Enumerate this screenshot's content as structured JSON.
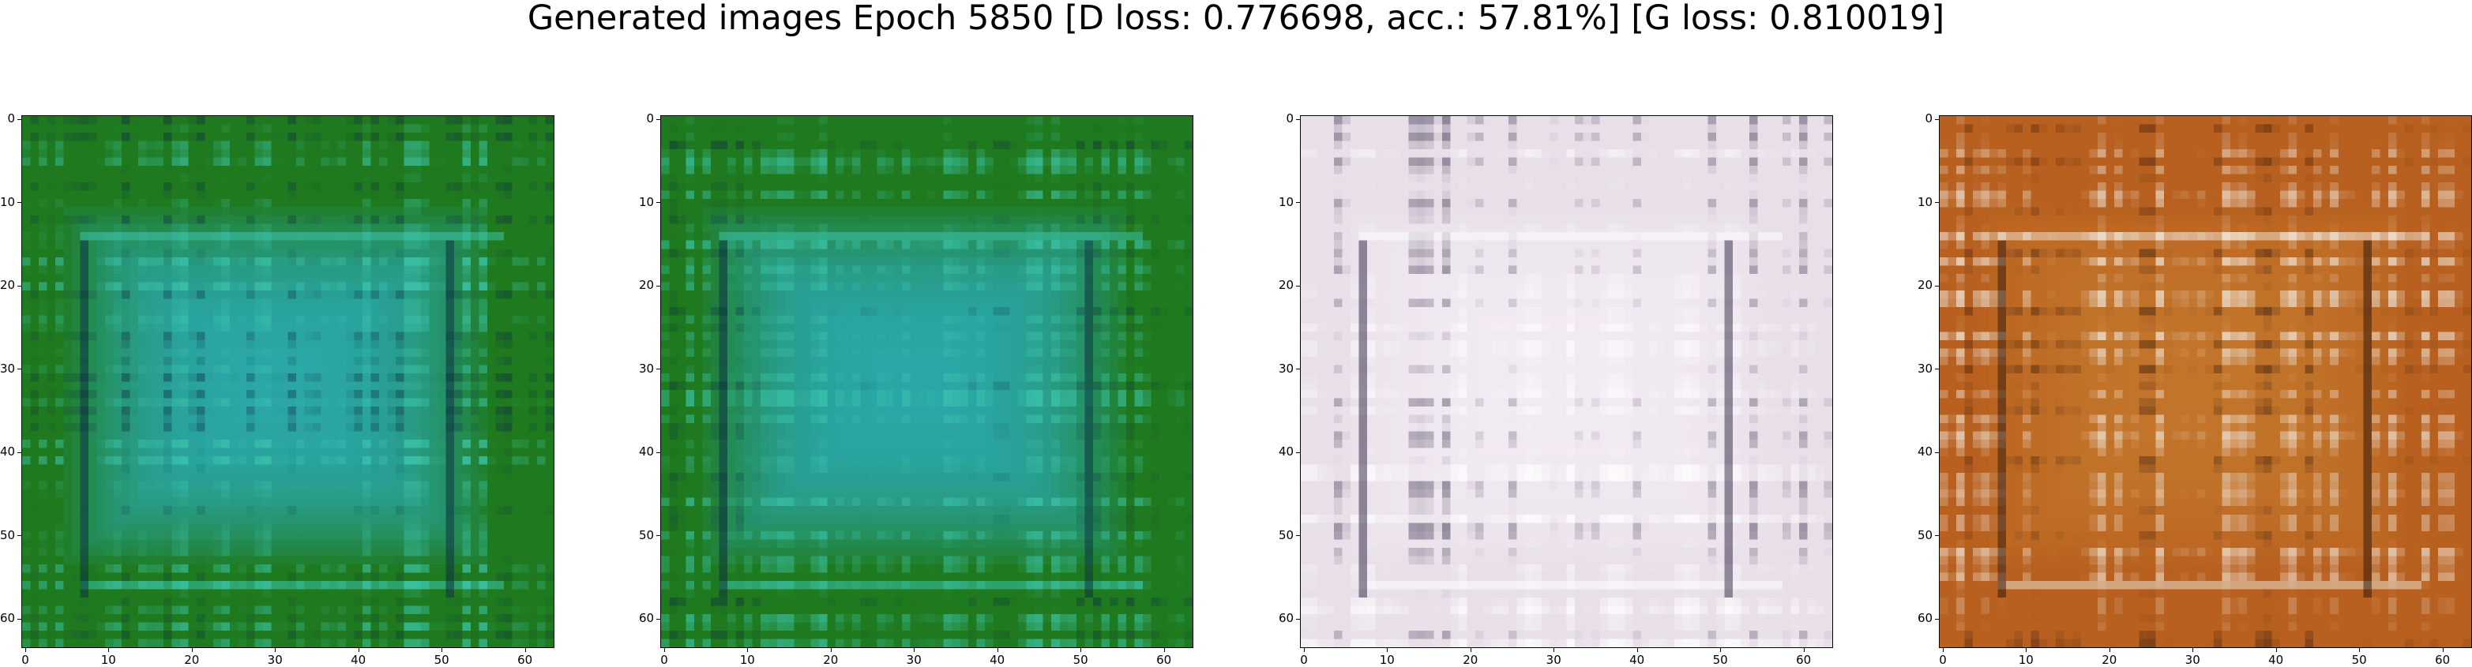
{
  "figure": {
    "title": "Generated images Epoch 5850 [D loss: 0.776698, acc.: 57.81%] [G loss: 0.810019]"
  },
  "panels": [
    {
      "name": "generated-image-1",
      "palette": "green-teal",
      "base": "#1f7a1f",
      "inner": "#2aa6a6",
      "dark": "#0a2a40",
      "light": "#3ec9b0"
    },
    {
      "name": "generated-image-2",
      "palette": "green-teal",
      "base": "#1f7a1f",
      "inner": "#2aa6a6",
      "dark": "#0a2a40",
      "light": "#3ec9b0"
    },
    {
      "name": "generated-image-3",
      "palette": "white-pink",
      "base": "#e8dfe9",
      "inner": "#f2eaf2",
      "dark": "#2b2140",
      "light": "#ffffff"
    },
    {
      "name": "generated-image-4",
      "palette": "orange-brown",
      "base": "#b8601f",
      "inner": "#c2742a",
      "dark": "#2a140a",
      "light": "#f1e8dc"
    }
  ],
  "axes": {
    "x_ticks": [
      "0",
      "10",
      "20",
      "30",
      "40",
      "50",
      "60"
    ],
    "y_ticks": [
      "0",
      "10",
      "20",
      "30",
      "40",
      "50",
      "60"
    ]
  }
}
